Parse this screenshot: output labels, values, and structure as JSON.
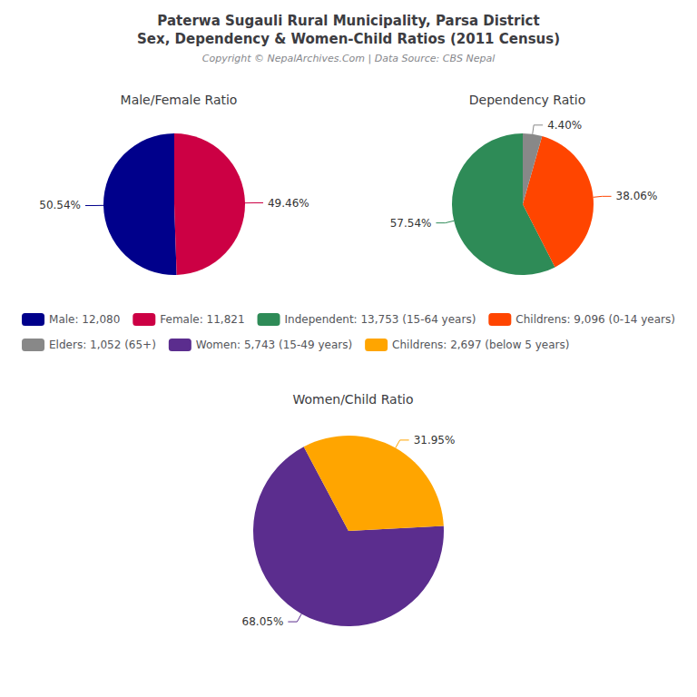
{
  "title": "Paterwa Sugauli Rural Municipality, Parsa District\nSex, Dependency & Women-Child Ratios (2011 Census)",
  "subtitle": "Copyright © NepalArchives.Com | Data Source: CBS Nepal",
  "chart_data": [
    {
      "type": "pie",
      "title": "Male/Female Ratio",
      "categories": [
        "Male: 12,080",
        "Female: 11,821"
      ],
      "values": [
        50.54,
        49.46
      ],
      "value_labels": [
        "50.54%",
        "49.46%"
      ],
      "colors": [
        "#00008B",
        "#CC0044"
      ],
      "data_labels": true,
      "legend": "center"
    },
    {
      "type": "pie",
      "title": "Dependency Ratio",
      "categories": [
        "Independent: 13,753 (15-64 years)",
        "Childrens: 9,096 (0-14 years)",
        "Elders: 1,052 (65+)"
      ],
      "values": [
        57.54,
        38.06,
        4.4
      ],
      "value_labels": [
        "57.54%",
        "38.06%",
        "4.40%"
      ],
      "colors": [
        "#2E8B57",
        "#FF4500",
        "#888888"
      ],
      "data_labels": true,
      "legend": "center"
    },
    {
      "type": "pie",
      "title": "Women/Child Ratio",
      "categories": [
        "Women: 5,743 (15-49 years)",
        "Childrens: 2,697 (below 5 years)"
      ],
      "values": [
        68.05,
        31.95
      ],
      "value_labels": [
        "68.05%",
        "31.95%"
      ],
      "colors": [
        "#5B2D8E",
        "#FFA500"
      ],
      "data_labels": true,
      "legend": "center"
    }
  ]
}
